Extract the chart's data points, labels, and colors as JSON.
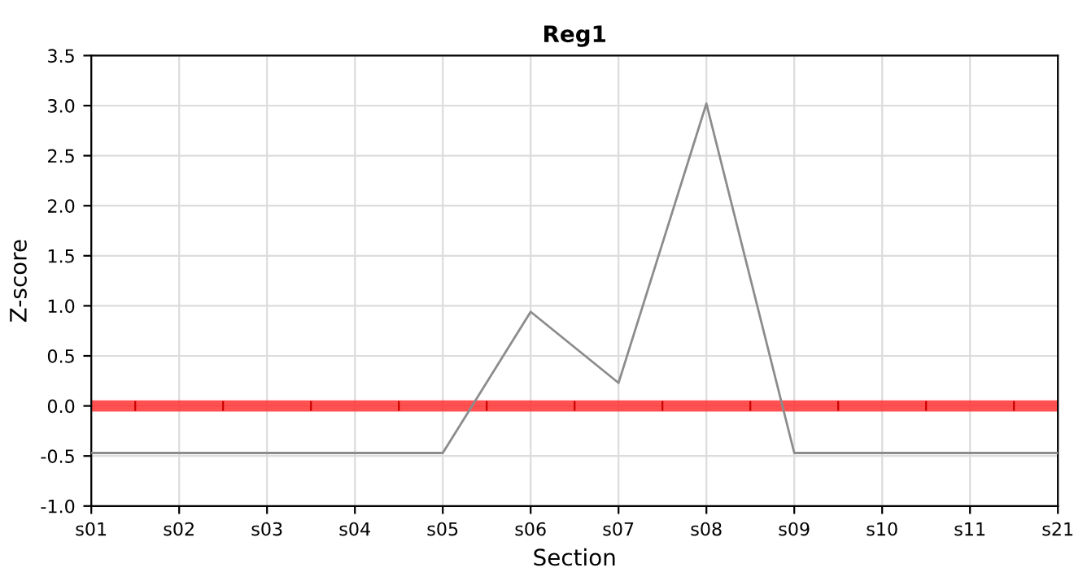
{
  "chart_data": {
    "type": "line",
    "title": "Reg1",
    "xlabel": "Section",
    "ylabel": "Z-score",
    "categories": [
      "s01",
      "s02",
      "s03",
      "s04",
      "s05",
      "s06",
      "s07",
      "s08",
      "s09",
      "s10",
      "s11",
      "s21"
    ],
    "series": [
      {
        "color": "#8c8c8c",
        "values": [
          -0.47,
          -0.47,
          -0.47,
          -0.47,
          -0.47,
          0.94,
          0.23,
          3.02,
          -0.47,
          -0.47,
          -0.47,
          -0.47
        ]
      }
    ],
    "ylim": [
      -1.0,
      3.5
    ],
    "yticks": [
      {
        "value": -1.0,
        "label": "-1.0"
      },
      {
        "value": -0.5,
        "label": "-0.5"
      },
      {
        "value": 0.0,
        "label": "0.0"
      },
      {
        "value": 0.5,
        "label": "0.5"
      },
      {
        "value": 1.0,
        "label": "1.0"
      },
      {
        "value": 1.5,
        "label": "1.5"
      },
      {
        "value": 2.0,
        "label": "2.0"
      },
      {
        "value": 2.5,
        "label": "2.5"
      },
      {
        "value": 3.0,
        "label": "3.0"
      },
      {
        "value": 3.5,
        "label": "3.5"
      }
    ],
    "ref_lines": [
      {
        "axis": "y",
        "value": 0,
        "color": "#ff3333"
      }
    ],
    "grid": true,
    "marker": "none",
    "line_style": "solid",
    "legend": false
  }
}
